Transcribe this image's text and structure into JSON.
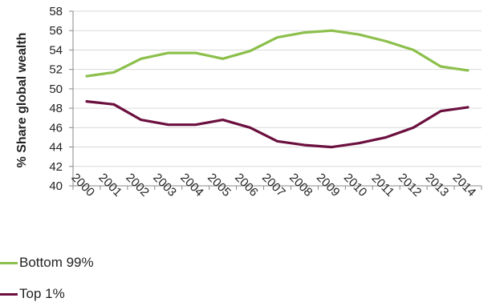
{
  "chart_data": {
    "type": "line",
    "ylabel": "% Share global wealth",
    "xlabel": "",
    "categories": [
      "2000",
      "2001",
      "2002",
      "2003",
      "2004",
      "2005",
      "2006",
      "2007",
      "2008",
      "2009",
      "2010",
      "2011",
      "2012",
      "2013",
      "2014"
    ],
    "ylim": [
      40,
      58
    ],
    "yticks": [
      40,
      42,
      44,
      46,
      48,
      50,
      52,
      54,
      56,
      58
    ],
    "grid": true,
    "legend_position": "bottom-left",
    "series": [
      {
        "name": "Bottom 99%",
        "color": "#8cbf4b",
        "values": [
          51.3,
          51.7,
          53.1,
          53.7,
          53.7,
          53.1,
          53.9,
          55.3,
          55.8,
          56.0,
          55.6,
          54.9,
          54.0,
          52.3,
          51.9
        ]
      },
      {
        "name": "Top 1%",
        "color": "#6b0f3e",
        "values": [
          48.7,
          48.4,
          46.8,
          46.3,
          46.3,
          46.8,
          46.0,
          44.6,
          44.2,
          44.0,
          44.4,
          45.0,
          46.0,
          47.7,
          48.1
        ]
      }
    ]
  }
}
